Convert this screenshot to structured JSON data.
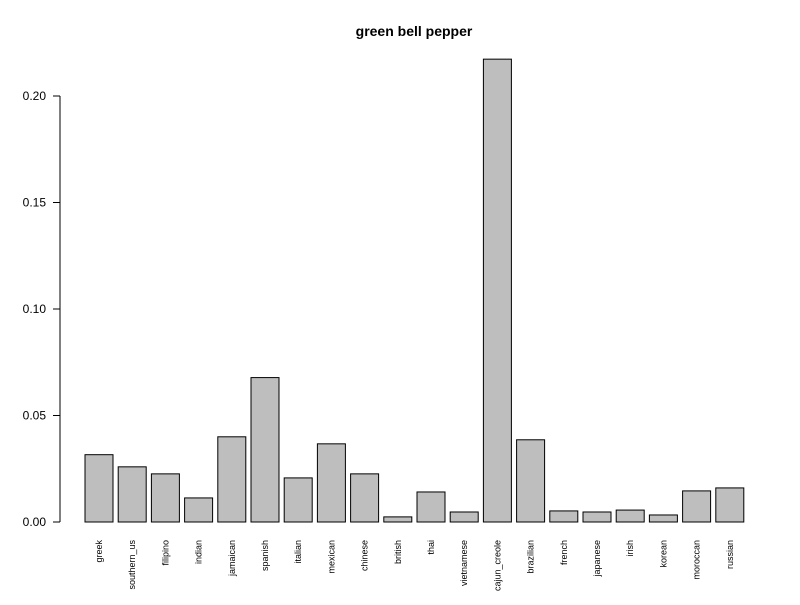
{
  "chart_data": {
    "type": "bar",
    "title": "green bell pepper",
    "xlabel": "",
    "ylabel": "",
    "ylim": [
      0,
      0.22
    ],
    "yticks": [
      0.0,
      0.05,
      0.1,
      0.15,
      0.2
    ],
    "ytick_labels": [
      "0.00",
      "0.05",
      "0.10",
      "0.15",
      "0.20"
    ],
    "grid": false,
    "bar_color": "#bebebe",
    "bar_edge_color": "#000000",
    "categories": [
      "greek",
      "southern_us",
      "filipino",
      "indian",
      "jamaican",
      "spanish",
      "italian",
      "mexican",
      "chinese",
      "british",
      "thai",
      "vietnamese",
      "cajun_creole",
      "brazilian",
      "french",
      "japanese",
      "irish",
      "korean",
      "moroccan",
      "russian"
    ],
    "values": [
      0.0316,
      0.0259,
      0.0226,
      0.0113,
      0.04,
      0.0678,
      0.0207,
      0.0367,
      0.0226,
      0.0024,
      0.0141,
      0.0047,
      0.2173,
      0.0386,
      0.0052,
      0.0047,
      0.0056,
      0.0033,
      0.0146,
      0.016
    ]
  }
}
